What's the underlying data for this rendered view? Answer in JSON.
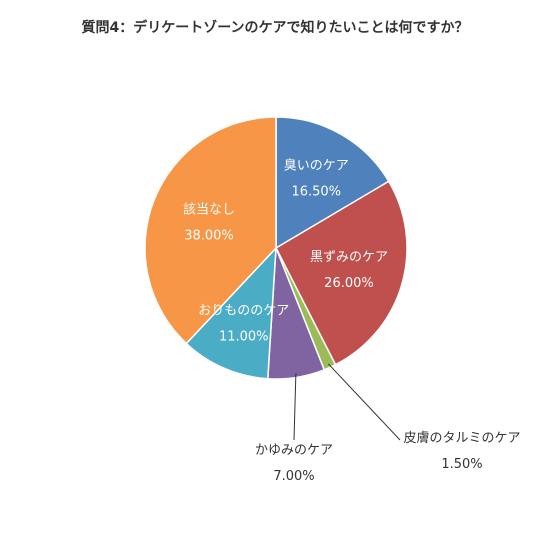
{
  "chart_data": {
    "type": "pie",
    "title": "質問4：デリケートゾーンのケアで知りたいことは何ですか？",
    "slices": [
      {
        "name": "臭いのケア",
        "value": 16.5,
        "label": "16.50%",
        "color": "#4f81bd"
      },
      {
        "name": "黒ずみのケア",
        "value": 26.0,
        "label": "26.00%",
        "color": "#c0504d"
      },
      {
        "name": "皮膚のタルミのケア",
        "value": 1.5,
        "label": "1.50%",
        "color": "#9bbb59"
      },
      {
        "name": "かゆみのケア",
        "value": 7.0,
        "label": "7.00%",
        "color": "#8064a2"
      },
      {
        "name": "おりもののケア",
        "value": 11.0,
        "label": "11.00%",
        "color": "#4bacc6"
      },
      {
        "name": "該当なし",
        "value": 38.0,
        "label": "38.00%",
        "color": "#f79646"
      }
    ],
    "legend": "none"
  }
}
